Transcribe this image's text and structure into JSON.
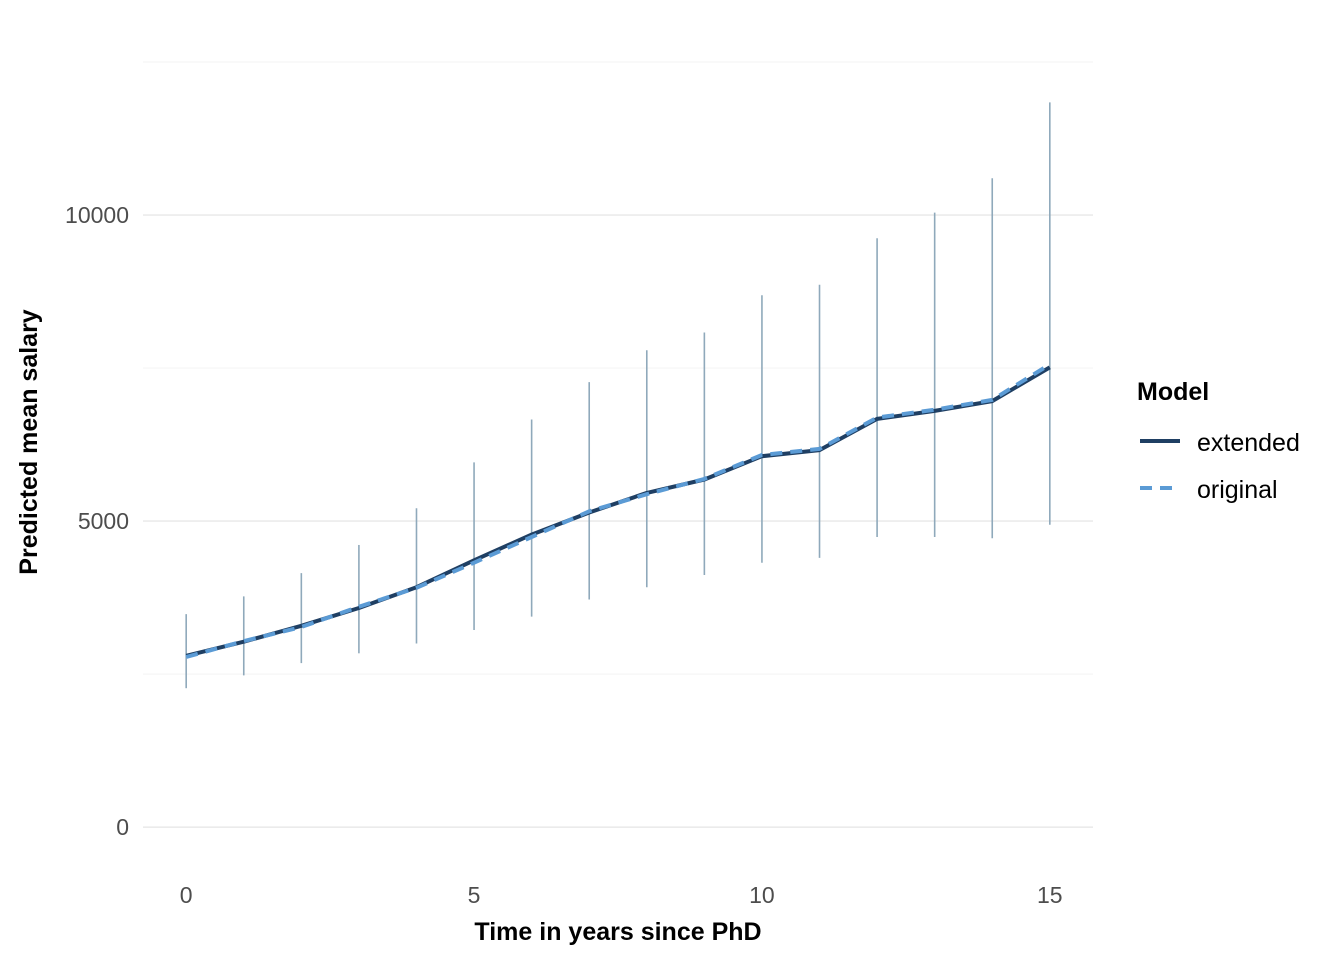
{
  "chart_data": {
    "type": "line",
    "xlabel": "Time in years since PhD",
    "ylabel": "Predicted mean salary",
    "xlim": [
      -0.75,
      15.75
    ],
    "ylim": [
      -700,
      12500
    ],
    "x_ticks": [
      0,
      5,
      10,
      15
    ],
    "y_ticks": [
      0,
      5000,
      10000
    ],
    "y_minor_ticks": [
      2500,
      7500,
      12500
    ],
    "grid": true,
    "legend": {
      "title": "Model",
      "position": "right"
    },
    "x": [
      0,
      1,
      2,
      3,
      4,
      5,
      6,
      7,
      8,
      9,
      10,
      11,
      12,
      13,
      14,
      15
    ],
    "series": [
      {
        "name": "extended",
        "color": "#1f3f63",
        "dash": "solid",
        "values": [
          2800,
          3030,
          3290,
          3580,
          3920,
          4360,
          4780,
          5140,
          5460,
          5680,
          6060,
          6160,
          6670,
          6800,
          6960,
          7510
        ]
      },
      {
        "name": "original",
        "color": "#5b9bd5",
        "dash": "dashed",
        "values": [
          2780,
          3040,
          3270,
          3600,
          3910,
          4320,
          4740,
          5160,
          5440,
          5690,
          6080,
          6180,
          6690,
          6820,
          6980,
          7560
        ]
      }
    ],
    "intervals": {
      "color": "#8fa9bb",
      "lower": [
        2270,
        2480,
        2680,
        2840,
        3000,
        3220,
        3440,
        3720,
        3920,
        4120,
        4320,
        4400,
        4740,
        4740,
        4720,
        4940
      ],
      "upper": [
        3480,
        3770,
        4150,
        4610,
        5210,
        5960,
        6660,
        7270,
        7790,
        8080,
        8690,
        8860,
        9620,
        10040,
        10600,
        11840
      ]
    }
  }
}
